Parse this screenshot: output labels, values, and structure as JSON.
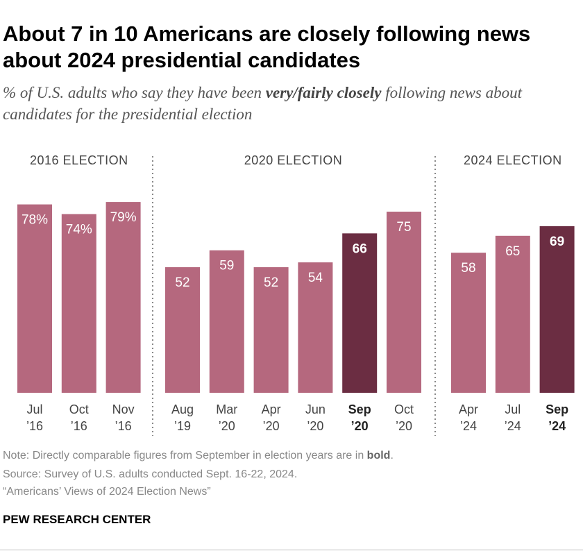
{
  "title": "About 7 in 10 Americans are closely following news about 2024 presidential candidates",
  "subtitle": [
    "% of U.S. adults who say they have been ",
    "very/fairly closely",
    " following news about candidates for the presidential election"
  ],
  "chart_data": {
    "type": "bar",
    "ylim": [
      0,
      100
    ],
    "groups": [
      {
        "label": "2016 ELECTION",
        "categories": [
          "Jul ’16",
          "Oct ’16",
          "Nov ’16"
        ],
        "values": [
          78,
          74,
          79
        ],
        "value_labels": [
          "78%",
          "74%",
          "79%"
        ],
        "colors": [
          "#b5687e",
          "#b5687e",
          "#b5687e"
        ],
        "bold": [
          false,
          false,
          false
        ]
      },
      {
        "label": "2020 ELECTION",
        "categories": [
          "Aug ’19",
          "Mar ’20",
          "Apr ’20",
          "Jun ’20",
          "Sep ’20",
          "Oct ’20"
        ],
        "values": [
          52,
          59,
          52,
          54,
          66,
          75
        ],
        "colors": [
          "#b5687e",
          "#b5687e",
          "#b5687e",
          "#b5687e",
          "#6b2d42",
          "#b5687e"
        ],
        "bold": [
          false,
          false,
          false,
          false,
          true,
          false
        ]
      },
      {
        "label": "2024 ELECTION",
        "categories": [
          "Apr ’24",
          "Jul ’24",
          "Sep ’24"
        ],
        "values": [
          58,
          65,
          69
        ],
        "colors": [
          "#b5687e",
          "#b5687e",
          "#6b2d42"
        ],
        "bold": [
          false,
          false,
          true
        ]
      }
    ]
  },
  "note": [
    "Note: Directly comparable figures from September in election years are in ",
    "bold",
    "."
  ],
  "source": "Source: Survey of U.S. adults conducted Sept. 16-22, 2024.",
  "report": "“Americans’ Views of 2024 Election News”",
  "brand": "PEW RESEARCH CENTER"
}
